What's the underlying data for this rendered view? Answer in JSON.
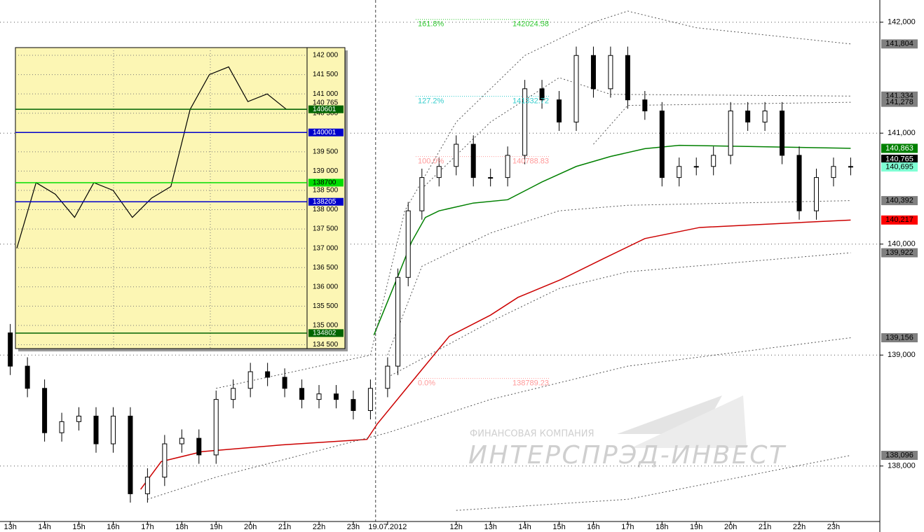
{
  "chart_data": {
    "type": "candlestick",
    "watermark": {
      "company": "ФИНАНСОВАЯ КОМПАНИЯ",
      "name": "ИНТЕРСПРЭД-ИНВЕСТ"
    },
    "categories": [
      "13h",
      "14h",
      "15h",
      "16h",
      "17h",
      "18h",
      "19h",
      "20h",
      "21h",
      "22h",
      "23h",
      "19.07.2012",
      null,
      "12h",
      "13h",
      "14h",
      "15h",
      "16h",
      "17h",
      "18h",
      "19h",
      "20h",
      "21h",
      "22h",
      "23h"
    ],
    "xlim": [
      -0.3,
      25.35
    ],
    "ylim": [
      137500,
      142200
    ],
    "yticks": [
      {
        "value": 142000,
        "label": "142,000"
      },
      {
        "value": 141000,
        "label": "141,000"
      },
      {
        "value": 140000,
        "label": "140,000"
      },
      {
        "value": 139000,
        "label": "139,000"
      },
      {
        "value": 138000,
        "label": "138,000"
      }
    ],
    "grid": true,
    "separator_x": 10.65,
    "candles": {
      "x": [
        0,
        0.5,
        1,
        1.5,
        2,
        2.5,
        3,
        3.5,
        4,
        4.5,
        5,
        5.5,
        6,
        6.5,
        7,
        7.5,
        8,
        8.5,
        9,
        9.5,
        10,
        10.5,
        11,
        11.3,
        11.6,
        12,
        12.5,
        13,
        13.5,
        14,
        14.5,
        15,
        15.5,
        16,
        16.5,
        17,
        17.5,
        18,
        18.5,
        19,
        19.5,
        20,
        20.5,
        21,
        21.5,
        22,
        22.5,
        23,
        23.5,
        24,
        24.5
      ],
      "open": [
        139200,
        138900,
        138700,
        138300,
        138400,
        138450,
        138200,
        138450,
        137750,
        137900,
        138200,
        138250,
        138100,
        138600,
        138700,
        138850,
        138800,
        138700,
        138600,
        138650,
        138600,
        138500,
        138700,
        138900,
        139700,
        140300,
        140600,
        140700,
        140900,
        140600,
        140600,
        140800,
        141400,
        141300,
        141100,
        141700,
        141400,
        141700,
        141300,
        141200,
        140600,
        140700,
        140700,
        140800,
        141200,
        141100,
        141200,
        140800,
        140300,
        140600,
        140700
      ],
      "high": [
        139280,
        138980,
        138780,
        138480,
        138530,
        138530,
        138530,
        138530,
        137980,
        138280,
        138330,
        138330,
        138680,
        138780,
        138930,
        138930,
        138880,
        138780,
        138730,
        138730,
        138680,
        138780,
        138980,
        139780,
        140380,
        140680,
        140780,
        140980,
        140980,
        140680,
        140880,
        141480,
        141480,
        141380,
        141780,
        141780,
        141780,
        141780,
        141380,
        141280,
        140780,
        140780,
        140880,
        141280,
        141280,
        141280,
        141280,
        140880,
        140680,
        140780,
        140780
      ],
      "low": [
        138820,
        138620,
        138220,
        138220,
        138320,
        138120,
        138120,
        137670,
        137670,
        137820,
        138120,
        138020,
        138020,
        138520,
        138620,
        138720,
        138620,
        138520,
        138520,
        138520,
        138420,
        138420,
        138620,
        138820,
        139620,
        140220,
        140520,
        140620,
        140520,
        140520,
        140520,
        140720,
        141220,
        141020,
        141020,
        141320,
        141320,
        141220,
        141120,
        140520,
        140520,
        140620,
        140620,
        140720,
        141020,
        141020,
        140720,
        140220,
        140220,
        140520,
        140620
      ],
      "close": [
        138900,
        138700,
        138300,
        138400,
        138450,
        138200,
        138450,
        137750,
        137900,
        138200,
        138250,
        138100,
        138600,
        138700,
        138850,
        138800,
        138700,
        138600,
        138650,
        138600,
        138500,
        138700,
        138900,
        139700,
        140300,
        140600,
        140700,
        140900,
        140600,
        140600,
        140800,
        141400,
        141300,
        141100,
        141700,
        141400,
        141700,
        141300,
        141200,
        140600,
        140700,
        140700,
        140800,
        141200,
        141100,
        141200,
        140800,
        140300,
        140600,
        140700,
        140700
      ],
      "up_color": "#ffffff",
      "down_color": "#000000"
    },
    "lines": [
      {
        "color": "#008000",
        "dashed": false,
        "x": [
          10.6,
          11.3,
          11.7,
          12.1,
          12.5,
          13.5,
          14.5,
          15.5,
          16.5,
          17.5,
          18.5,
          19.5,
          21.5,
          24.5
        ],
        "values": [
          139180,
          139710,
          140020,
          140240,
          140300,
          140370,
          140400,
          140560,
          140700,
          140790,
          140860,
          140890,
          140880,
          140863
        ]
      },
      {
        "color": "#cc0000",
        "dashed": false,
        "x": [
          3.8,
          4.4,
          5.6,
          7.9,
          10.4,
          10.7,
          11.55,
          12.8,
          14.0,
          14.8,
          16.05,
          17.3,
          18.5,
          20.1,
          24.5
        ],
        "values": [
          137790,
          138040,
          138130,
          138190,
          138240,
          138380,
          138700,
          139170,
          139360,
          139520,
          139680,
          139870,
          140050,
          140150,
          140217
        ]
      },
      {
        "color": "#555555",
        "dashed": true,
        "x": [
          6,
          10.5,
          11.5,
          13,
          15,
          17,
          18,
          20,
          24.5
        ],
        "values": [
          138700,
          139000,
          140300,
          141100,
          141700,
          142000,
          142100,
          141950,
          141804
        ]
      },
      {
        "color": "#555555",
        "dashed": true,
        "x": [
          12,
          14,
          16,
          17.5,
          24.5
        ],
        "values": [
          140500,
          141100,
          141500,
          141350,
          141334
        ]
      },
      {
        "color": "#555555",
        "dashed": true,
        "x": [
          17,
          18,
          24.5
        ],
        "values": [
          140900,
          141250,
          141278
        ]
      },
      {
        "color": "#555555",
        "dashed": true,
        "x": [
          11,
          12,
          14,
          16,
          18,
          24.5
        ],
        "values": [
          139000,
          139800,
          140100,
          140300,
          140350,
          140392
        ]
      },
      {
        "color": "#555555",
        "dashed": true,
        "x": [
          11,
          14,
          16,
          18,
          24.5
        ],
        "values": [
          138800,
          139300,
          139600,
          139750,
          139922
        ]
      },
      {
        "color": "#555555",
        "dashed": true,
        "x": [
          4,
          6,
          11,
          14,
          18,
          24.5
        ],
        "values": [
          137700,
          137900,
          138300,
          138600,
          138900,
          139156
        ]
      },
      {
        "color": "#555555",
        "dashed": true,
        "x": [
          13,
          18,
          24.5
        ],
        "values": [
          137600,
          137700,
          138096
        ]
      }
    ],
    "price_labels": [
      {
        "value": 141804,
        "label": "141,804",
        "color": "#808080",
        "text_color": "#000000"
      },
      {
        "value": 141334,
        "label": "141,334",
        "color": "#808080",
        "text_color": "#000000"
      },
      {
        "value": 141278,
        "label": "141,278",
        "color": "#808080",
        "text_color": "#000000"
      },
      {
        "value": 140863,
        "label": "140,863",
        "color": "#008000",
        "text_color": "#ffffff"
      },
      {
        "value": 140765,
        "label": "140,765",
        "color": "#000000",
        "text_color": "#ffffff"
      },
      {
        "value": 140695,
        "label": "140,695",
        "color": "#7fffd4",
        "text_color": "#000000"
      },
      {
        "value": 140392,
        "label": "140,392",
        "color": "#808080",
        "text_color": "#000000"
      },
      {
        "value": 140217,
        "label": "140,217",
        "color": "#ff0000",
        "text_color": "#000000"
      },
      {
        "value": 139922,
        "label": "139,922",
        "color": "#808080",
        "text_color": "#000000"
      },
      {
        "value": 139156,
        "label": "139,156",
        "color": "#808080",
        "text_color": "#000000"
      },
      {
        "value": 138096,
        "label": "138,096",
        "color": "#808080",
        "text_color": "#000000"
      }
    ],
    "fib_levels": [
      {
        "name": "161.8%",
        "value": 142024.58,
        "color": "#33cc33"
      },
      {
        "name": "127.2%",
        "value": 141332.72,
        "color": "#33cccc"
      },
      {
        "name": "100.0%",
        "value": 140788.83,
        "color": "#ff9999"
      },
      {
        "name": "0.0%",
        "value": 138789.23,
        "color": "#ff9999"
      }
    ],
    "inset": {
      "ylim": [
        134400,
        142200
      ],
      "yticks": [
        {
          "value": 142000,
          "label": "142 000"
        },
        {
          "value": 141500,
          "label": "141 500"
        },
        {
          "value": 141000,
          "label": "141 000"
        },
        {
          "value": 140500,
          "label": "140 500"
        },
        {
          "value": 140000,
          "label": "140 000"
        },
        {
          "value": 139500,
          "label": "139 500"
        },
        {
          "value": 139000,
          "label": "139 000"
        },
        {
          "value": 138500,
          "label": "138 500"
        },
        {
          "value": 138000,
          "label": "138 000"
        },
        {
          "value": 137500,
          "label": "137 500"
        },
        {
          "value": 137000,
          "label": "137 000"
        },
        {
          "value": 136500,
          "label": "136 500"
        },
        {
          "value": 136000,
          "label": "136 000"
        },
        {
          "value": 135500,
          "label": "135 500"
        },
        {
          "value": 135000,
          "label": "135 000"
        },
        {
          "value": 134500,
          "label": "134 500"
        }
      ],
      "values": [
        137000,
        138700,
        138400,
        137800,
        138700,
        138500,
        137800,
        138300,
        138600,
        140600,
        141500,
        141700,
        140800,
        141000,
        140600,
        140600
      ],
      "color": "#000000",
      "levels": [
        {
          "value": 140765,
          "label": "140 765",
          "color": null,
          "text_color": "#000000",
          "line": false
        },
        {
          "value": 140601,
          "label": "140601",
          "color": "#006400",
          "text_color": "#ffffff",
          "line": true
        },
        {
          "value": 140001,
          "label": "140001",
          "color": "#0000cc",
          "text_color": "#ffffff",
          "line": true
        },
        {
          "value": 138700,
          "label": "138700",
          "color": "#00dd00",
          "text_color": "#000000",
          "line": true
        },
        {
          "value": 138205,
          "label": "138205",
          "color": "#0000cc",
          "text_color": "#ffffff",
          "line": true
        },
        {
          "value": 134802,
          "label": "134802",
          "color": "#006400",
          "text_color": "#ffffff",
          "line": true
        }
      ]
    }
  }
}
